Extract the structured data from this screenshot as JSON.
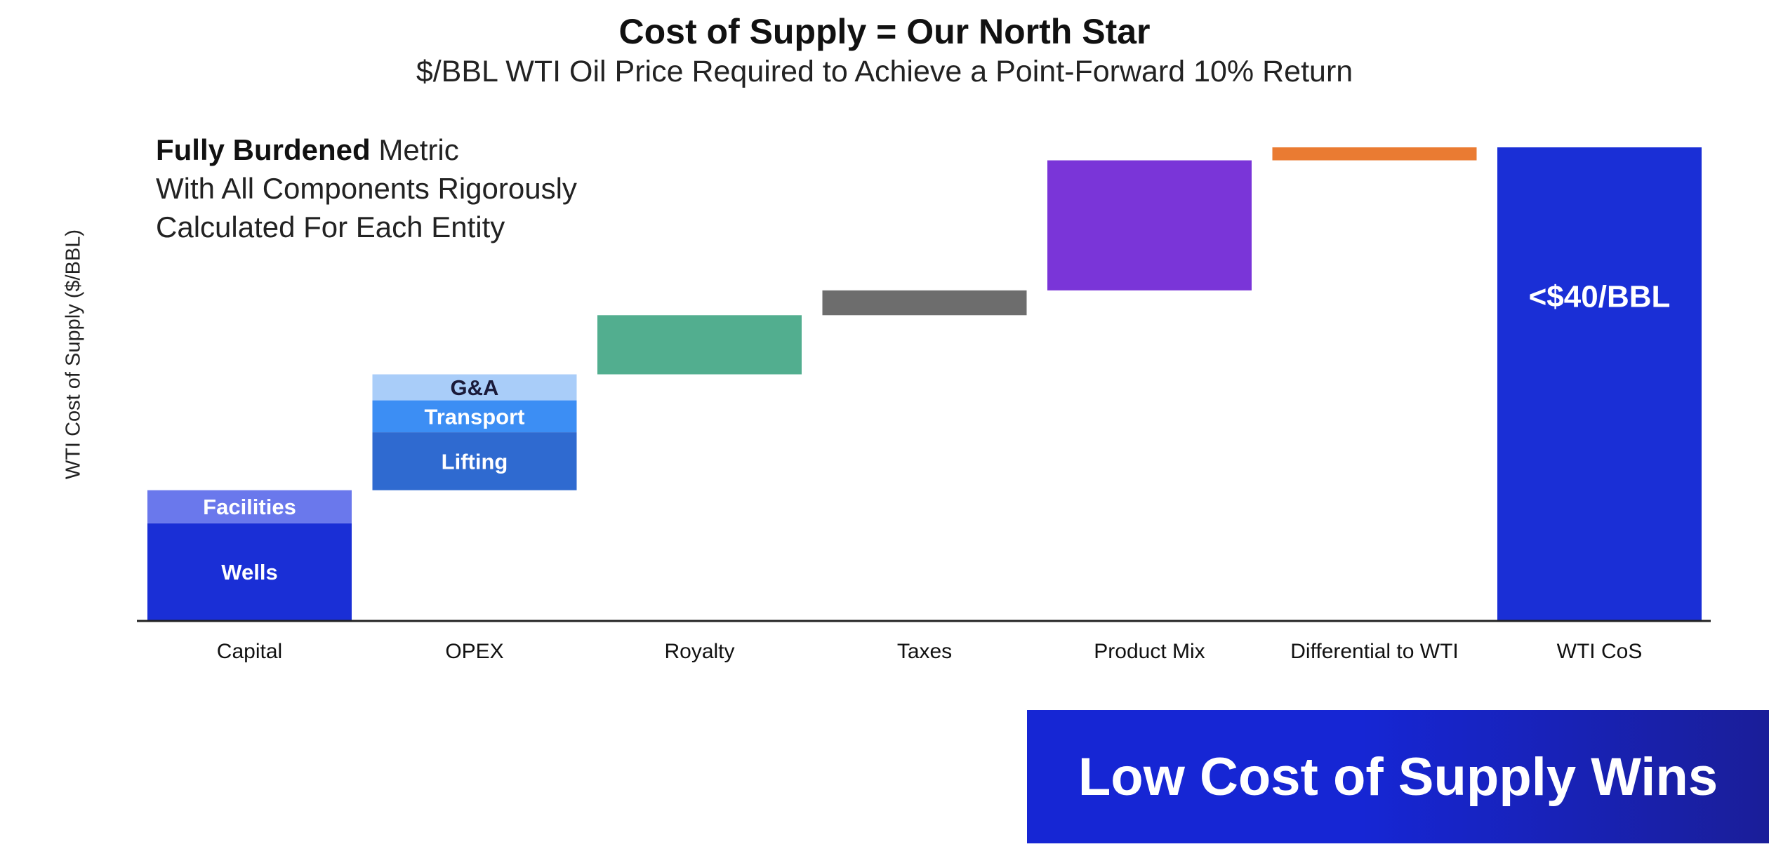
{
  "chart_data": {
    "type": "bar",
    "subtype": "waterfall",
    "title": "Cost of Supply = Our North Star",
    "subtitle": "$/BBL WTI Oil Price Required to Achieve a Point-Forward 10% Return",
    "ylabel": "WTI Cost of Supply ($/BBL)",
    "xlabel": "",
    "ylim": [
      0,
      40
    ],
    "grid": false,
    "categories": [
      "Capital",
      "OPEX",
      "Royalty",
      "Taxes",
      "Product Mix",
      "Differential to WTI",
      "WTI CoS"
    ],
    "segments": [
      {
        "category": "Capital",
        "label": "Wells",
        "start": 0,
        "end": 8.2,
        "color": "#1a2fd6"
      },
      {
        "category": "Capital",
        "label": "Facilities",
        "start": 8.2,
        "end": 11.0,
        "color": "#6a78ec"
      },
      {
        "category": "OPEX",
        "label": "Lifting",
        "start": 11.0,
        "end": 15.9,
        "color": "#2f6ad0"
      },
      {
        "category": "OPEX",
        "label": "Transport",
        "start": 15.9,
        "end": 18.6,
        "color": "#3c8ef4"
      },
      {
        "category": "OPEX",
        "label": "G&A",
        "start": 18.6,
        "end": 20.8,
        "color": "#a9cdf9"
      },
      {
        "category": "Royalty",
        "label": "",
        "start": 20.8,
        "end": 25.8,
        "color": "#52ae8f"
      },
      {
        "category": "Taxes",
        "label": "",
        "start": 25.8,
        "end": 27.9,
        "color": "#6d6d6d"
      },
      {
        "category": "Product Mix",
        "label": "",
        "start": 27.9,
        "end": 38.9,
        "color": "#7a35d8"
      },
      {
        "category": "Differential to WTI",
        "label": "",
        "start": 38.9,
        "end": 40.0,
        "color": "#ea7b32"
      },
      {
        "category": "WTI CoS",
        "label": "<$40/BBL",
        "start": 0,
        "end": 40.0,
        "color": "#1a2fd6"
      }
    ]
  },
  "note": {
    "bold": "Fully Burdened",
    "line1_rest": " Metric",
    "line2": "With All Components Rigorously",
    "line3": "Calculated For Each Entity"
  },
  "banner": {
    "text": "Low Cost of Supply Wins",
    "color": "#1626d4"
  }
}
